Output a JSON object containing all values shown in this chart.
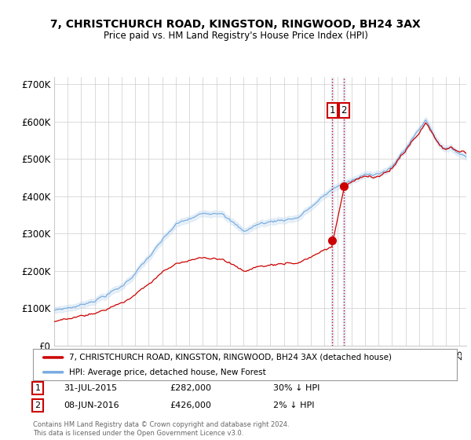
{
  "title": "7, CHRISTCHURCH ROAD, KINGSTON, RINGWOOD, BH24 3AX",
  "subtitle": "Price paid vs. HM Land Registry's House Price Index (HPI)",
  "legend_line1": "7, CHRISTCHURCH ROAD, KINGSTON, RINGWOOD, BH24 3AX (detached house)",
  "legend_line2": "HPI: Average price, detached house, New Forest",
  "footnote": "Contains HM Land Registry data © Crown copyright and database right 2024.\nThis data is licensed under the Open Government Licence v3.0.",
  "ann1_label": "1",
  "ann1_date": "31-JUL-2015",
  "ann1_price": "£282,000",
  "ann1_hpi": "30% ↓ HPI",
  "ann2_label": "2",
  "ann2_date": "08-JUN-2016",
  "ann2_price": "£426,000",
  "ann2_hpi": "2% ↓ HPI",
  "red_color": "#cc0000",
  "blue_color": "#7aade0",
  "blue_fill": "#c8ddf2",
  "background_color": "#ffffff",
  "grid_color": "#cccccc",
  "ylim_max": 720,
  "yticks": [
    0,
    100,
    200,
    300,
    400,
    500,
    600,
    700
  ],
  "ytick_labels": [
    "£0",
    "£100K",
    "£200K",
    "£300K",
    "£400K",
    "£500K",
    "£600K",
    "£700K"
  ],
  "xmin": 1995,
  "xmax": 2025.5,
  "year1": 2015.583,
  "year2": 2016.458,
  "price1": 282,
  "price2": 426
}
